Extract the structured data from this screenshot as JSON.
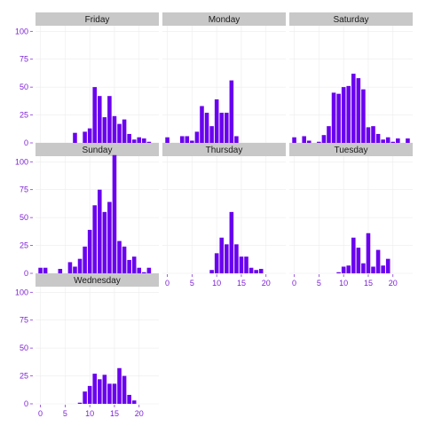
{
  "chart_data": {
    "type": "bar",
    "faceted": true,
    "layout": "facet wrap, 3 columns",
    "bar_color": "#6a00f0",
    "strip_color": "#c8c8c8",
    "tick_label_color": "#7c1fd6",
    "grid": true,
    "xlim": [
      -1,
      24
    ],
    "ylim": [
      0,
      105
    ],
    "x_ticks": [
      0,
      5,
      10,
      15,
      20
    ],
    "y_ticks": [
      0,
      25,
      50,
      75,
      100
    ],
    "facets": [
      {
        "name": "Friday",
        "x": [
          7,
          9,
          10,
          11,
          12,
          13,
          14,
          15,
          16,
          17,
          18,
          19,
          20,
          21,
          22
        ],
        "values": [
          9,
          10,
          13,
          50,
          42,
          23,
          42,
          24,
          17,
          21,
          8,
          3,
          5,
          4,
          1
        ]
      },
      {
        "name": "Monday",
        "x": [
          0,
          3,
          4,
          5,
          6,
          7,
          8,
          9,
          10,
          11,
          12,
          13,
          14
        ],
        "values": [
          5,
          6,
          6,
          2,
          10,
          33,
          27,
          15,
          39,
          27,
          27,
          56,
          6
        ]
      },
      {
        "name": "Saturday",
        "x": [
          0,
          2,
          3,
          5,
          6,
          7,
          8,
          9,
          10,
          11,
          12,
          13,
          14,
          15,
          16,
          17,
          18,
          19,
          20,
          21,
          23
        ],
        "values": [
          5,
          6,
          2,
          1,
          7,
          15,
          45,
          44,
          50,
          51,
          62,
          58,
          48,
          14,
          15,
          8,
          3,
          5,
          1,
          4,
          4
        ]
      },
      {
        "name": "Sunday",
        "x": [
          0,
          1,
          4,
          6,
          7,
          8,
          9,
          10,
          11,
          12,
          13,
          14,
          15,
          16,
          17,
          18,
          19,
          20,
          21,
          22
        ],
        "values": [
          5,
          5,
          4,
          10,
          6,
          13,
          24,
          39,
          61,
          75,
          55,
          64,
          106,
          29,
          24,
          12,
          15,
          5,
          1,
          5
        ]
      },
      {
        "name": "Thursday",
        "x": [
          9,
          10,
          11,
          12,
          13,
          14,
          15,
          16,
          17,
          18,
          19
        ],
        "values": [
          3,
          18,
          32,
          26,
          55,
          26,
          15,
          15,
          5,
          3,
          4
        ]
      },
      {
        "name": "Tuesday",
        "x": [
          9,
          10,
          11,
          12,
          13,
          14,
          15,
          16,
          17,
          18,
          19
        ],
        "values": [
          1,
          6,
          7,
          32,
          23,
          9,
          36,
          6,
          21,
          7,
          13
        ]
      },
      {
        "name": "Wednesday",
        "x": [
          8,
          9,
          10,
          11,
          12,
          13,
          14,
          15,
          16,
          17,
          18,
          19
        ],
        "values": [
          1,
          11,
          16,
          27,
          22,
          26,
          18,
          18,
          32,
          25,
          8,
          3
        ]
      }
    ]
  }
}
